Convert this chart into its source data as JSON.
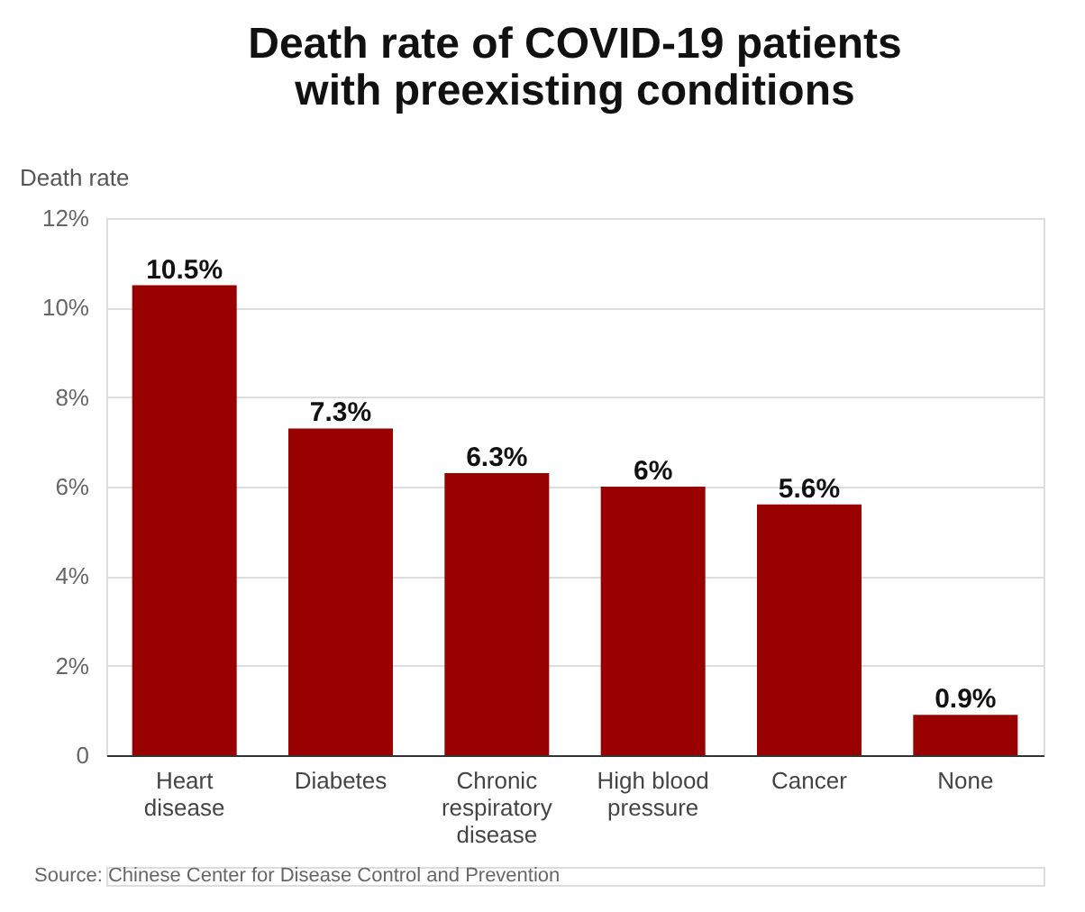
{
  "chart_data": {
    "type": "bar",
    "title": "Death rate of COVID-19 patients with preexisting conditions",
    "ylabel": "Death rate",
    "categories": [
      "Heart disease",
      "Diabetes",
      "Chronic respiratory disease",
      "High blood pressure",
      "Cancer",
      "None"
    ],
    "values": [
      10.5,
      7.3,
      6.3,
      6,
      5.6,
      0.9
    ],
    "value_labels": [
      "10.5%",
      "7.3%",
      "6.3%",
      "6%",
      "5.6%",
      "0.9%"
    ],
    "color": "#990000",
    "ylim": [
      0,
      12
    ],
    "yticks": [
      {
        "value": 0,
        "label": "0"
      },
      {
        "value": 2,
        "label": "2%"
      },
      {
        "value": 4,
        "label": "4%"
      },
      {
        "value": 6,
        "label": "6%"
      },
      {
        "value": 8,
        "label": "8%"
      },
      {
        "value": 10,
        "label": "10%"
      },
      {
        "value": 12,
        "label": "12%"
      }
    ],
    "grid": "y",
    "annotations": [
      "Source: Chinese Center for Disease Control and Prevention"
    ]
  }
}
